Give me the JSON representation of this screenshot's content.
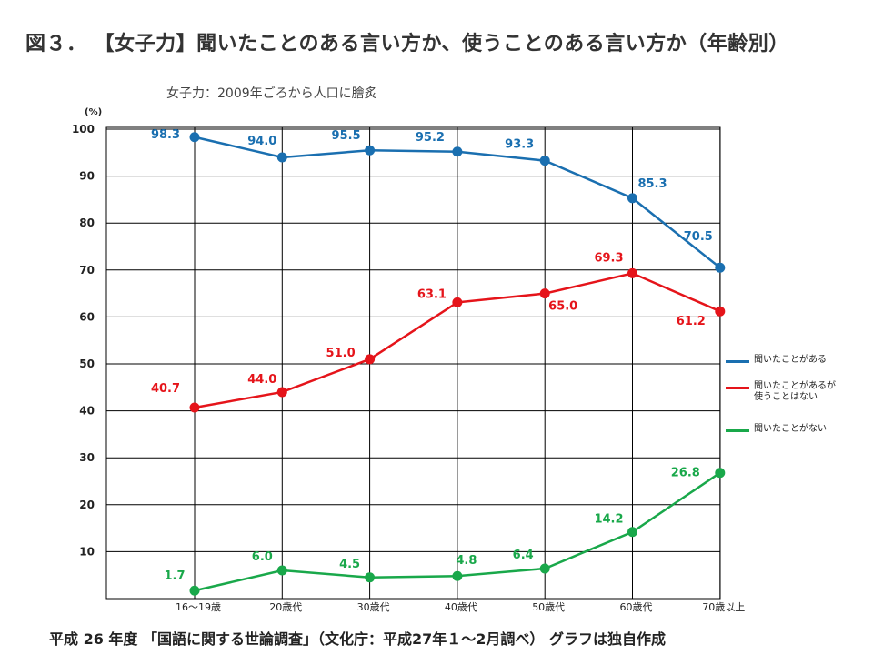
{
  "page": {
    "title": "図３． 【女子力】聞いたことのある言い方か、使うことのある言い方か（年齢別）",
    "subtitle": "女子力：2009年ごろから人口に膾炙",
    "unit": "(%)",
    "footer": "平成 26 年度 「国語に関する世論調査」（文化庁：平成27年１～2月調べ） グラフは独自作成"
  },
  "chart_data": {
    "type": "line",
    "title": "",
    "xlabel": "",
    "ylabel": "(%)",
    "ylim": [
      0,
      100
    ],
    "yticks": [
      10,
      20,
      30,
      40,
      50,
      60,
      70,
      80,
      90,
      100
    ],
    "categories": [
      "16～19歳",
      "20歳代",
      "30歳代",
      "40歳代",
      "50歳代",
      "60歳代",
      "70歳以上"
    ],
    "grid": true,
    "legend": "right",
    "series": [
      {
        "name": "聞いたことがある",
        "color": "#1a6fb0",
        "values": [
          98.3,
          94.0,
          95.5,
          95.2,
          93.3,
          85.3,
          70.5
        ],
        "labels": [
          "98.3",
          "94.0",
          "95.5",
          "95.2",
          "93.3",
          "85.3",
          "70.5"
        ]
      },
      {
        "name": "聞いたことがあるが\n使うことはない",
        "color": "#e5141a",
        "values": [
          40.7,
          44.0,
          51.0,
          63.1,
          65.0,
          69.3,
          61.2
        ],
        "labels": [
          "40.7",
          "44.0",
          "51.0",
          "63.1",
          "65.0",
          "69.3",
          "61.2"
        ]
      },
      {
        "name": "聞いたことがない",
        "color": "#19a84a",
        "values": [
          1.7,
          6.0,
          4.5,
          4.8,
          6.4,
          14.2,
          26.8
        ],
        "labels": [
          "1.7",
          "6.0",
          "4.5",
          "4.8",
          "6.4",
          "14.2",
          "26.8"
        ]
      }
    ]
  }
}
